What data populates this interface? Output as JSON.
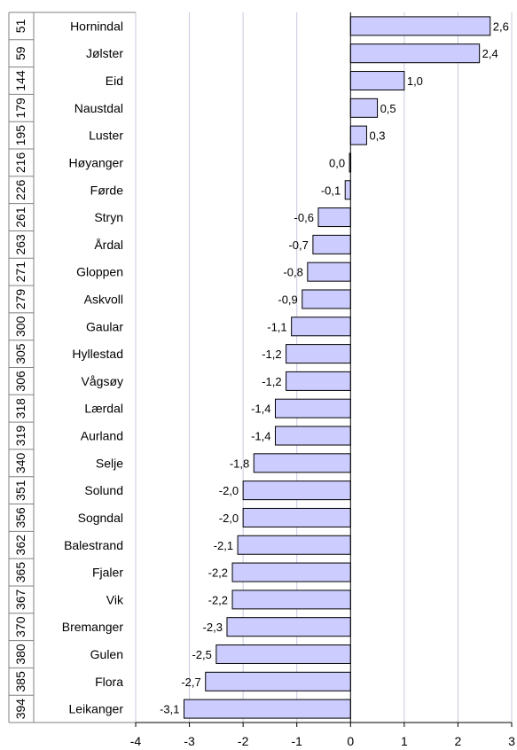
{
  "chart_data": {
    "type": "bar",
    "orientation": "horizontal",
    "categories": [
      "Hornindal",
      "Jølster",
      "Eid",
      "Naustdal",
      "Luster",
      "Høyanger",
      "Førde",
      "Stryn",
      "Årdal",
      "Gloppen",
      "Askvoll",
      "Gaular",
      "Hyllestad",
      "Vågsøy",
      "Lærdal",
      "Aurland",
      "Selje",
      "Solund",
      "Sogndal",
      "Balestrand",
      "Fjaler",
      "Vik",
      "Bremanger",
      "Gulen",
      "Flora",
      "Leikanger"
    ],
    "ranks": [
      "51",
      "59",
      "144",
      "179",
      "195",
      "216",
      "226",
      "261",
      "263",
      "271",
      "279",
      "300",
      "305",
      "306",
      "318",
      "319",
      "340",
      "351",
      "356",
      "362",
      "365",
      "367",
      "370",
      "380",
      "385",
      "394"
    ],
    "values": [
      2.6,
      2.4,
      1.0,
      0.5,
      0.3,
      -0.02,
      -0.1,
      -0.6,
      -0.7,
      -0.8,
      -0.9,
      -1.1,
      -1.2,
      -1.2,
      -1.4,
      -1.4,
      -1.8,
      -2.0,
      -2.0,
      -2.1,
      -2.2,
      -2.2,
      -2.3,
      -2.5,
      -2.7,
      -3.1
    ],
    "value_labels": [
      "2,6",
      "2,4",
      "1,0",
      "0,5",
      "0,3",
      "0,0",
      "-0,1",
      "-0,6",
      "-0,7",
      "-0,8",
      "-0,9",
      "-1,1",
      "-1,2",
      "-1,2",
      "-1,4",
      "-1,4",
      "-1,8",
      "-2,0",
      "-2,0",
      "-2,1",
      "-2,2",
      "-2,2",
      "-2,3",
      "-2,5",
      "-2,7",
      "-3,1"
    ],
    "xlim": [
      -4,
      3
    ],
    "xticks": [
      "-4",
      "-3",
      "-2",
      "-1",
      "0",
      "1",
      "2",
      "3"
    ],
    "grid": true,
    "colors": {
      "bar_fill": "#ccccff",
      "bar_stroke": "#000000",
      "grid": "#c8c8e0",
      "axis": "#000000"
    }
  }
}
